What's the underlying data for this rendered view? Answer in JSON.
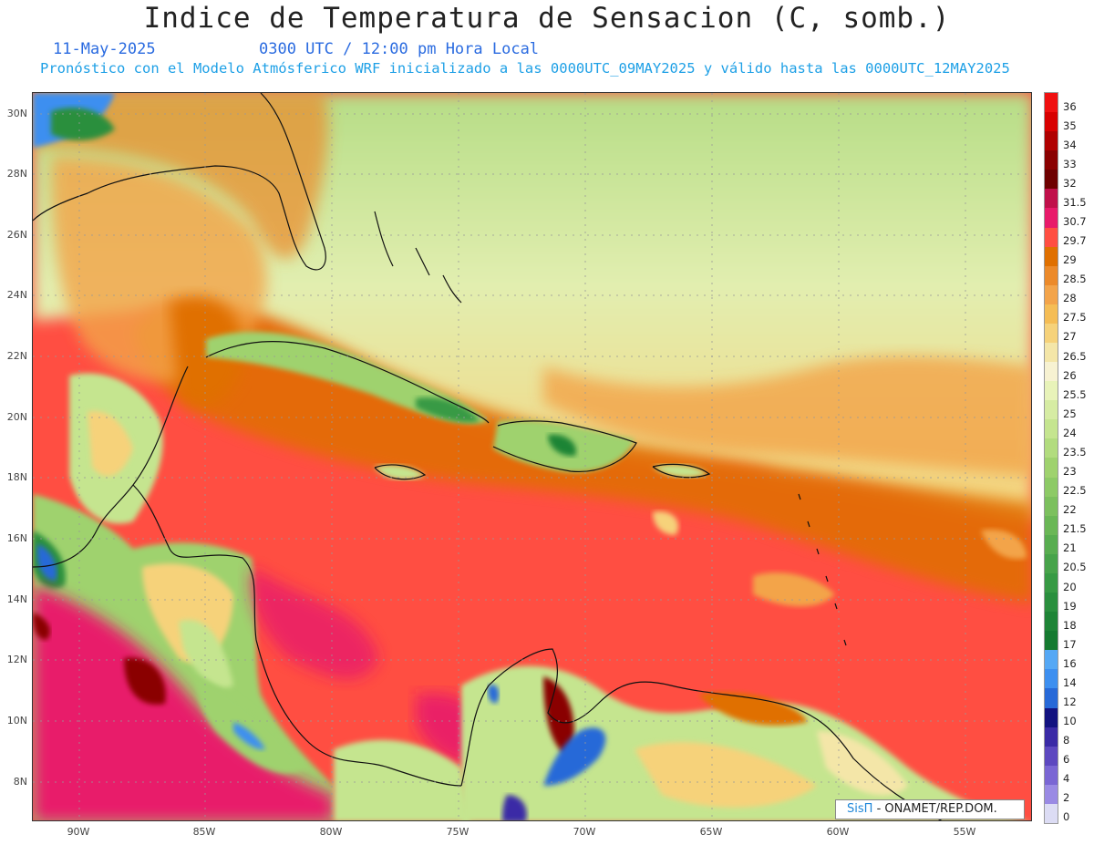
{
  "header": {
    "title": "Indice de Temperatura de Sensacion (C, somb.)",
    "date": "11-May-2025",
    "time": "0300 UTC / 12:00 pm Hora Local",
    "model_line": "Pronóstico con el Modelo Atmósferico WRF inicializado a las 0000UTC_09MAY2025 y válido hasta las  0000UTC_12MAY2025"
  },
  "map": {
    "lat_labels": [
      "30N",
      "28N",
      "26N",
      "24N",
      "22N",
      "20N",
      "18N",
      "16N",
      "14N",
      "12N",
      "10N",
      "8N"
    ],
    "lon_labels": [
      "90W",
      "85W",
      "80W",
      "75W",
      "70W",
      "65W",
      "60W",
      "55W"
    ]
  },
  "colorbar": {
    "labels": [
      "36",
      "35",
      "34",
      "33",
      "32",
      "31.5",
      "30.7",
      "29.7",
      "29",
      "28.5",
      "28",
      "27.5",
      "27",
      "26.5",
      "26",
      "25.5",
      "25",
      "24",
      "23.5",
      "23",
      "22.5",
      "22",
      "21.5",
      "21",
      "20.5",
      "20",
      "19",
      "18",
      "17",
      "16",
      "14",
      "12",
      "10",
      "8",
      "6",
      "4",
      "2",
      "0"
    ],
    "colors": [
      "#f01010",
      "#d80000",
      "#b00000",
      "#8a0000",
      "#6e0000",
      "#c0104a",
      "#e81a6a",
      "#ff4e42",
      "#e07000",
      "#ec8a2a",
      "#f3a44a",
      "#f5bd55",
      "#f6d27a",
      "#f4e6a8",
      "#f7f2d2",
      "#e8f3b9",
      "#d6eca3",
      "#c5e58f",
      "#b2dc7e",
      "#9fd26e",
      "#8dca66",
      "#7cc05e",
      "#6ab756",
      "#58ad50",
      "#47a34a",
      "#379a44",
      "#2a8f3e",
      "#1e8436",
      "#157a30",
      "#55a8f5",
      "#3d8ff0",
      "#2769d8",
      "#121280",
      "#3a2aa6",
      "#5d48c0",
      "#7a66d4",
      "#9a8ae4",
      "#dcdcf4"
    ]
  },
  "credit": {
    "logo": "SisΠ",
    "text": "- ONAMET/REP.DOM."
  }
}
